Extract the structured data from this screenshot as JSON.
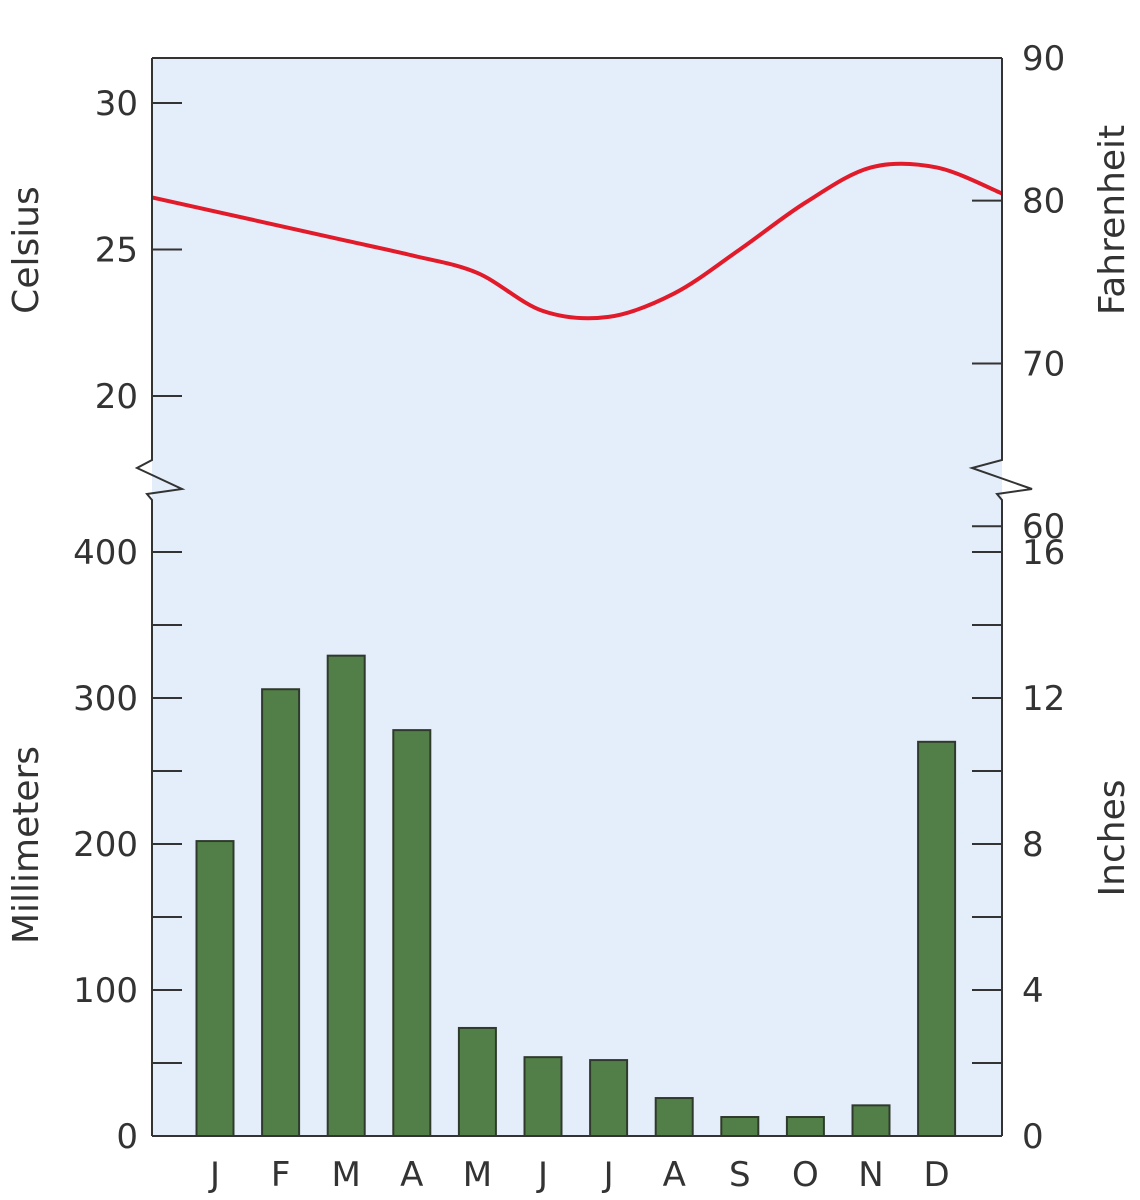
{
  "chart_data": {
    "type": "bar+line",
    "categories": [
      "J",
      "F",
      "M",
      "A",
      "M",
      "J",
      "J",
      "A",
      "S",
      "O",
      "N",
      "D"
    ],
    "temperature": {
      "type": "line",
      "unit_left": "Celsius",
      "unit_right": "Fahrenheit",
      "values": [
        26.3,
        25.8,
        25.3,
        24.8,
        24.2,
        22.9,
        22.7,
        23.5,
        25.0,
        26.6,
        27.8,
        27.8
      ],
      "ylim": [
        16.5,
        31.5
      ],
      "left_ticks": [
        20,
        25,
        30
      ],
      "right_ticks": [
        60,
        70,
        80,
        90
      ],
      "color": "#e21b2b"
    },
    "precipitation": {
      "type": "bar",
      "unit_left": "Millimeters",
      "unit_right": "Inches",
      "values": [
        202,
        306,
        329,
        278,
        74,
        54,
        52,
        26,
        13,
        13,
        21,
        270
      ],
      "ylim": [
        0,
        400
      ],
      "left_ticks": [
        0,
        100,
        200,
        300,
        400
      ],
      "left_minor_ticks": [
        50,
        150,
        250,
        350
      ],
      "right_ticks": [
        0,
        4,
        8,
        12,
        16
      ],
      "right_minor_ticks": [
        2,
        6,
        10,
        14
      ],
      "color": "#527f47"
    },
    "ylabel_top_left": "Celsius",
    "ylabel_top_right": "Fahrenheit",
    "ylabel_bottom_left": "Millimeters",
    "ylabel_bottom_right": "Inches",
    "background_color": "#e4eefa",
    "grid": false
  }
}
